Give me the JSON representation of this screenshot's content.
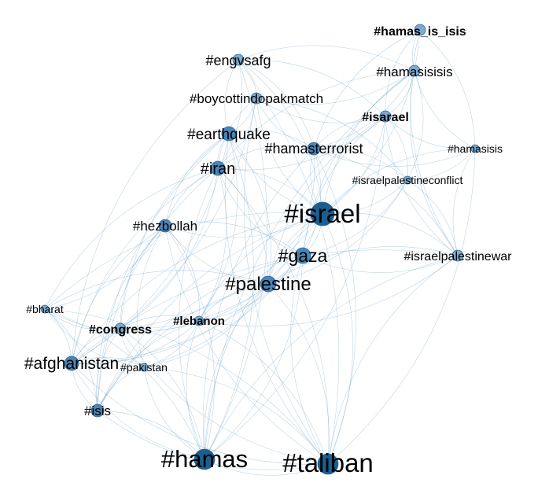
{
  "colors": {
    "edge": "#5a94bf",
    "node_small": "#7fa9cd",
    "node_medium": "#4a85b6",
    "node_large": "#1b5f92",
    "node_stroke": "#2d6a9a",
    "label": "#000000",
    "background": "#ffffff"
  },
  "graph": {
    "nodes": [
      {
        "id": "hamas_is_isis",
        "label": "#hamas_is_isis",
        "weight": 1
      },
      {
        "id": "engvsafg",
        "label": "#engvsafg",
        "weight": 2
      },
      {
        "id": "hamasisisis",
        "label": "#hamasisisis",
        "weight": 2
      },
      {
        "id": "boycottindopakmatch",
        "label": "#boycottindopakmatch",
        "weight": 2
      },
      {
        "id": "isarael",
        "label": "#isarael",
        "weight": 2
      },
      {
        "id": "earthquake",
        "label": "#earthquake",
        "weight": 3
      },
      {
        "id": "hamasterrorist",
        "label": "#hamasterrorist",
        "weight": 3
      },
      {
        "id": "hamasisis",
        "label": "#hamasisis",
        "weight": 1
      },
      {
        "id": "iran",
        "label": "#iran",
        "weight": 4
      },
      {
        "id": "israelpalestineconflict",
        "label": "#israelpalestineconflict",
        "weight": 1
      },
      {
        "id": "israel",
        "label": "#israel",
        "weight": 10
      },
      {
        "id": "hezbollah",
        "label": "#hezbollah",
        "weight": 3
      },
      {
        "id": "gaza",
        "label": "#gaza",
        "weight": 5
      },
      {
        "id": "israelpalestinewar",
        "label": "#israelpalestinewar",
        "weight": 2
      },
      {
        "id": "palestine",
        "label": "#palestine",
        "weight": 6
      },
      {
        "id": "bharat",
        "label": "#bharat",
        "weight": 1
      },
      {
        "id": "lebanon",
        "label": "#lebanon",
        "weight": 2
      },
      {
        "id": "congress",
        "label": "#congress",
        "weight": 2
      },
      {
        "id": "afghanistan",
        "label": "#afghanistan",
        "weight": 5
      },
      {
        "id": "pakistan",
        "label": "#pakistan",
        "weight": 1
      },
      {
        "id": "isis",
        "label": "#isis",
        "weight": 3
      },
      {
        "id": "hamas",
        "label": "#hamas",
        "weight": 9
      },
      {
        "id": "taliban",
        "label": "#taliban",
        "weight": 10
      }
    ],
    "edges": [
      [
        "israel",
        "hamas"
      ],
      [
        "israel",
        "taliban"
      ],
      [
        "israel",
        "palestine"
      ],
      [
        "israel",
        "gaza"
      ],
      [
        "israel",
        "iran"
      ],
      [
        "israel",
        "hamasterrorist"
      ],
      [
        "israel",
        "isarael"
      ],
      [
        "israel",
        "hamasisisis"
      ],
      [
        "israel",
        "hamas_is_isis"
      ],
      [
        "israel",
        "israelpalestinewar"
      ],
      [
        "israel",
        "israelpalestineconflict"
      ],
      [
        "israel",
        "hamasisis"
      ],
      [
        "israel",
        "afghanistan"
      ],
      [
        "israel",
        "hezbollah"
      ],
      [
        "israel",
        "lebanon"
      ],
      [
        "israel",
        "earthquake"
      ],
      [
        "israel",
        "engvsafg"
      ],
      [
        "israel",
        "boycottindopakmatch"
      ],
      [
        "israel",
        "isis"
      ],
      [
        "israel",
        "congress"
      ],
      [
        "israel",
        "bharat"
      ],
      [
        "israel",
        "pakistan"
      ],
      [
        "hamas",
        "taliban"
      ],
      [
        "hamas",
        "palestine"
      ],
      [
        "hamas",
        "gaza"
      ],
      [
        "hamas",
        "afghanistan"
      ],
      [
        "hamas",
        "isis"
      ],
      [
        "hamas",
        "iran"
      ],
      [
        "hamas",
        "hezbollah"
      ],
      [
        "hamas",
        "lebanon"
      ],
      [
        "hamas",
        "congress"
      ],
      [
        "hamas",
        "pakistan"
      ],
      [
        "hamas",
        "bharat"
      ],
      [
        "hamas",
        "hamasterrorist"
      ],
      [
        "hamas",
        "earthquake"
      ],
      [
        "hamas",
        "israelpalestinewar"
      ],
      [
        "hamas",
        "isarael"
      ],
      [
        "hamas",
        "hamasisisis"
      ],
      [
        "hamas",
        "engvsafg"
      ],
      [
        "taliban",
        "afghanistan"
      ],
      [
        "taliban",
        "palestine"
      ],
      [
        "taliban",
        "gaza"
      ],
      [
        "taliban",
        "iran"
      ],
      [
        "taliban",
        "isis"
      ],
      [
        "taliban",
        "pakistan"
      ],
      [
        "taliban",
        "congress"
      ],
      [
        "taliban",
        "bharat"
      ],
      [
        "taliban",
        "earthquake"
      ],
      [
        "taliban",
        "engvsafg"
      ],
      [
        "taliban",
        "boycottindopakmatch"
      ],
      [
        "taliban",
        "lebanon"
      ],
      [
        "taliban",
        "hezbollah"
      ],
      [
        "taliban",
        "hamasterrorist"
      ],
      [
        "taliban",
        "israelpalestinewar"
      ],
      [
        "taliban",
        "hamasisis"
      ],
      [
        "palestine",
        "gaza"
      ],
      [
        "palestine",
        "iran"
      ],
      [
        "palestine",
        "hezbollah"
      ],
      [
        "palestine",
        "lebanon"
      ],
      [
        "palestine",
        "afghanistan"
      ],
      [
        "palestine",
        "isis"
      ],
      [
        "palestine",
        "congress"
      ],
      [
        "palestine",
        "hamasterrorist"
      ],
      [
        "palestine",
        "israelpalestinewar"
      ],
      [
        "palestine",
        "israelpalestineconflict"
      ],
      [
        "palestine",
        "isarael"
      ],
      [
        "palestine",
        "bharat"
      ],
      [
        "palestine",
        "pakistan"
      ],
      [
        "palestine",
        "earthquake"
      ],
      [
        "gaza",
        "iran"
      ],
      [
        "gaza",
        "hezbollah"
      ],
      [
        "gaza",
        "lebanon"
      ],
      [
        "gaza",
        "hamasterrorist"
      ],
      [
        "gaza",
        "isarael"
      ],
      [
        "gaza",
        "israelpalestinewar"
      ],
      [
        "gaza",
        "afghanistan"
      ],
      [
        "gaza",
        "isis"
      ],
      [
        "gaza",
        "hamasisisis"
      ],
      [
        "gaza",
        "israelpalestineconflict"
      ],
      [
        "gaza",
        "congress"
      ],
      [
        "iran",
        "hezbollah"
      ],
      [
        "iran",
        "lebanon"
      ],
      [
        "iran",
        "afghanistan"
      ],
      [
        "iran",
        "earthquake"
      ],
      [
        "iran",
        "engvsafg"
      ],
      [
        "iran",
        "boycottindopakmatch"
      ],
      [
        "iran",
        "isis"
      ],
      [
        "iran",
        "hamasterrorist"
      ],
      [
        "iran",
        "bharat"
      ],
      [
        "iran",
        "congress"
      ],
      [
        "iran",
        "isarael"
      ],
      [
        "iran",
        "hamasisisis"
      ],
      [
        "afghanistan",
        "isis"
      ],
      [
        "afghanistan",
        "pakistan"
      ],
      [
        "afghanistan",
        "bharat"
      ],
      [
        "afghanistan",
        "congress"
      ],
      [
        "afghanistan",
        "earthquake"
      ],
      [
        "afghanistan",
        "engvsafg"
      ],
      [
        "afghanistan",
        "boycottindopakmatch"
      ],
      [
        "afghanistan",
        "hezbollah"
      ],
      [
        "afghanistan",
        "lebanon"
      ],
      [
        "hezbollah",
        "lebanon"
      ],
      [
        "hezbollah",
        "isis"
      ],
      [
        "hezbollah",
        "bharat"
      ],
      [
        "hezbollah",
        "congress"
      ],
      [
        "hezbollah",
        "earthquake"
      ],
      [
        "hezbollah",
        "pakistan"
      ],
      [
        "hamasterrorist",
        "isarael"
      ],
      [
        "hamasterrorist",
        "hamasisisis"
      ],
      [
        "hamasterrorist",
        "hamas_is_isis"
      ],
      [
        "hamasterrorist",
        "hamasisis"
      ],
      [
        "hamasterrorist",
        "israelpalestineconflict"
      ],
      [
        "hamasterrorist",
        "earthquake"
      ],
      [
        "hamasterrorist",
        "boycottindopakmatch"
      ],
      [
        "hamasterrorist",
        "engvsafg"
      ],
      [
        "hamasterrorist",
        "israelpalestinewar"
      ],
      [
        "isarael",
        "hamasisisis"
      ],
      [
        "isarael",
        "hamas_is_isis"
      ],
      [
        "isarael",
        "hamasisis"
      ],
      [
        "isarael",
        "israelpalestineconflict"
      ],
      [
        "isarael",
        "israelpalestinewar"
      ],
      [
        "isarael",
        "boycottindopakmatch"
      ],
      [
        "isarael",
        "engvsafg"
      ],
      [
        "hamasisisis",
        "hamas_is_isis"
      ],
      [
        "hamasisisis",
        "hamasisis"
      ],
      [
        "hamasisisis",
        "israelpalestineconflict"
      ],
      [
        "hamasisisis",
        "israelpalestinewar"
      ],
      [
        "hamasisisis",
        "boycottindopakmatch"
      ],
      [
        "hamasisisis",
        "engvsafg"
      ],
      [
        "hamas_is_isis",
        "hamasisis"
      ],
      [
        "hamas_is_isis",
        "israelpalestinewar"
      ],
      [
        "hamasisis",
        "israelpalestineconflict"
      ],
      [
        "hamasisis",
        "israelpalestinewar"
      ],
      [
        "israelpalestineconflict",
        "israelpalestinewar"
      ],
      [
        "israelpalestineconflict",
        "boycottindopakmatch"
      ],
      [
        "engvsafg",
        "boycottindopakmatch"
      ],
      [
        "engvsafg",
        "earthquake"
      ],
      [
        "boycottindopakmatch",
        "earthquake"
      ],
      [
        "earthquake",
        "isis"
      ],
      [
        "earthquake",
        "lebanon"
      ],
      [
        "earthquake",
        "congress"
      ],
      [
        "congress",
        "bharat"
      ],
      [
        "congress",
        "pakistan"
      ],
      [
        "congress",
        "lebanon"
      ],
      [
        "congress",
        "isis"
      ],
      [
        "lebanon",
        "pakistan"
      ],
      [
        "lebanon",
        "isis"
      ],
      [
        "lebanon",
        "bharat"
      ],
      [
        "bharat",
        "pakistan"
      ],
      [
        "bharat",
        "isis"
      ],
      [
        "pakistan",
        "isis"
      ],
      [
        "israelpalestinewar",
        "lebanon"
      ],
      [
        "israelpalestinewar",
        "afghanistan"
      ]
    ]
  }
}
